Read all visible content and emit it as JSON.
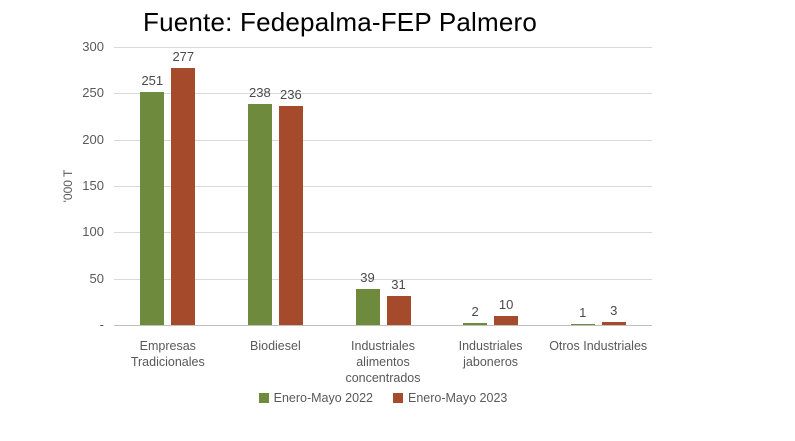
{
  "title": "Fuente: Fedepalma-FEP Palmero",
  "chart_data": {
    "type": "bar",
    "title": "Fuente: Fedepalma-FEP Palmero",
    "categories": [
      "Empresas\nTradicionales",
      "Biodiesel",
      "Industriales\nalimentos\nconcentrados",
      "Industriales\njaboneros",
      "Otros Industriales"
    ],
    "series": [
      {
        "name": "Enero-Mayo 2022",
        "color": "#6E8B3D",
        "values": [
          251,
          238,
          39,
          2,
          1
        ]
      },
      {
        "name": "Enero-Mayo 2023",
        "color": "#A54A2A",
        "values": [
          277,
          236,
          31,
          10,
          3
        ]
      }
    ],
    "xlabel": "",
    "ylabel": "'000 T",
    "ylim": [
      0,
      300
    ],
    "yticks": [
      300,
      250,
      200,
      150,
      100,
      50,
      0
    ],
    "ytick_labels": [
      "300",
      "250",
      "200",
      "150",
      "100",
      "50",
      "-"
    ],
    "grid": true,
    "data_labels": true,
    "legend_position": "bottom"
  },
  "colors": {
    "background": "#FFFFFF",
    "grid": "#D9D9D9",
    "axis": "#BFBFBF",
    "tick_text": "#595959",
    "value_text": "#4A4A4A",
    "title_text": "#000000",
    "series_2022": "#6E8B3D",
    "series_2023": "#A54A2A"
  }
}
